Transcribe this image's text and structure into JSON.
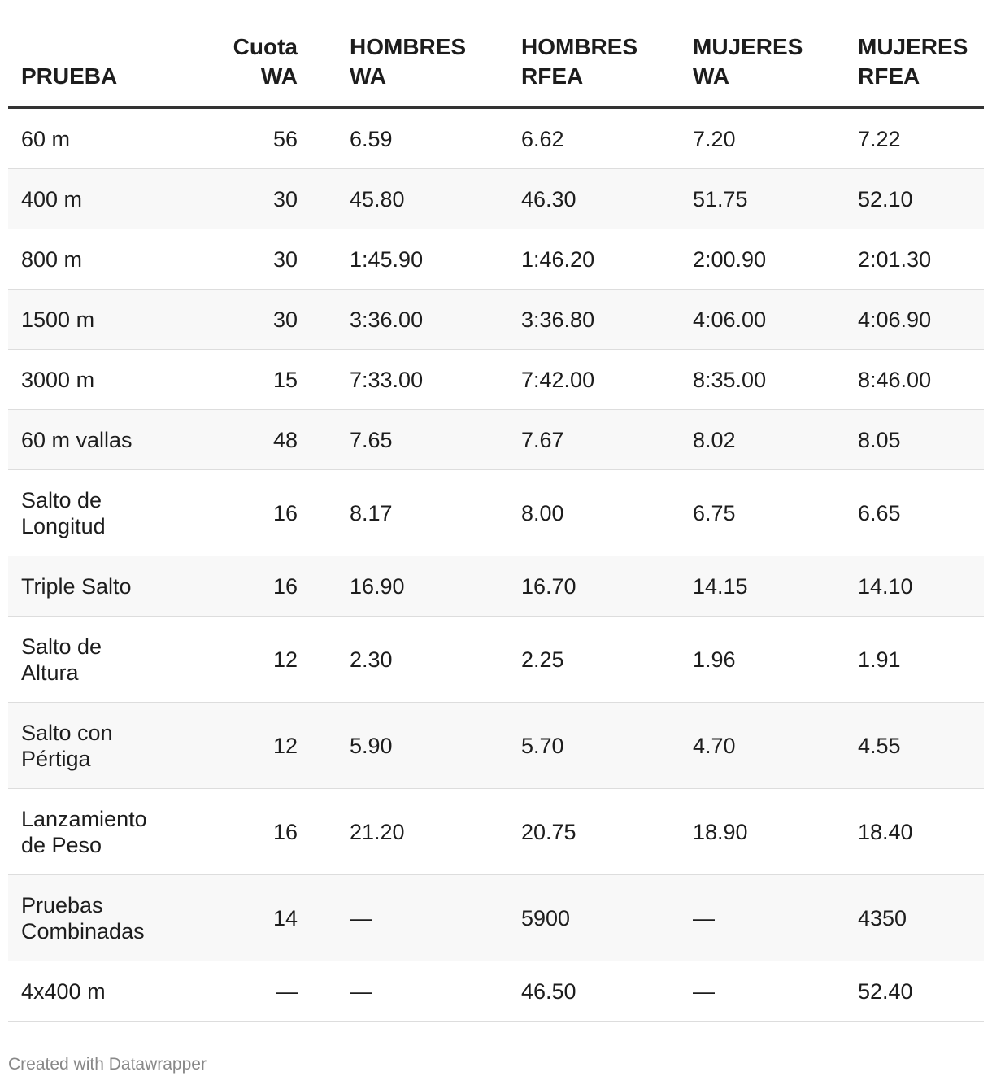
{
  "table": {
    "headers": {
      "prueba": "PRUEBA",
      "cuota_l1": "Cuota",
      "cuota_l2": "WA",
      "hombres_wa_l1": "HOMBRES",
      "hombres_wa_l2": "WA",
      "hombres_rfea_l1": "HOMBRES",
      "hombres_rfea_l2": "RFEA",
      "mujeres_wa_l1": "MUJERES",
      "mujeres_wa_l2": "WA",
      "mujeres_rfea_l1": "MUJERES",
      "mujeres_rfea_l2": "RFEA"
    },
    "rows": [
      {
        "p1": "60 m",
        "p2": "",
        "cuota": "56",
        "hwa": "6.59",
        "hrfea": "6.62",
        "mwa": "7.20",
        "mrfea": "7.22"
      },
      {
        "p1": "400 m",
        "p2": "",
        "cuota": "30",
        "hwa": "45.80",
        "hrfea": "46.30",
        "mwa": "51.75",
        "mrfea": "52.10"
      },
      {
        "p1": "800 m",
        "p2": "",
        "cuota": "30",
        "hwa": "1:45.90",
        "hrfea": "1:46.20",
        "mwa": "2:00.90",
        "mrfea": "2:01.30"
      },
      {
        "p1": "1500 m",
        "p2": "",
        "cuota": "30",
        "hwa": "3:36.00",
        "hrfea": "3:36.80",
        "mwa": "4:06.00",
        "mrfea": "4:06.90"
      },
      {
        "p1": "3000 m",
        "p2": "",
        "cuota": "15",
        "hwa": "7:33.00",
        "hrfea": "7:42.00",
        "mwa": "8:35.00",
        "mrfea": "8:46.00"
      },
      {
        "p1": "60 m vallas",
        "p2": "",
        "cuota": "48",
        "hwa": "7.65",
        "hrfea": "7.67",
        "mwa": "8.02",
        "mrfea": "8.05"
      },
      {
        "p1": "Salto de",
        "p2": "Longitud",
        "cuota": "16",
        "hwa": "8.17",
        "hrfea": "8.00",
        "mwa": "6.75",
        "mrfea": "6.65"
      },
      {
        "p1": "Triple Salto",
        "p2": "",
        "cuota": "16",
        "hwa": "16.90",
        "hrfea": "16.70",
        "mwa": "14.15",
        "mrfea": "14.10"
      },
      {
        "p1": "Salto de",
        "p2": "Altura",
        "cuota": "12",
        "hwa": "2.30",
        "hrfea": "2.25",
        "mwa": "1.96",
        "mrfea": "1.91"
      },
      {
        "p1": "Salto con",
        "p2": "Pértiga",
        "cuota": "12",
        "hwa": "5.90",
        "hrfea": "5.70",
        "mwa": "4.70",
        "mrfea": "4.55"
      },
      {
        "p1": "Lanzamiento",
        "p2": "de Peso",
        "cuota": "16",
        "hwa": "21.20",
        "hrfea": "20.75",
        "mwa": "18.90",
        "mrfea": "18.40"
      },
      {
        "p1": "Pruebas",
        "p2": "Combinadas",
        "cuota": "14",
        "hwa": "—",
        "hrfea": "5900",
        "mwa": "—",
        "mrfea": "4350"
      },
      {
        "p1": "4x400 m",
        "p2": "",
        "cuota": "—",
        "hwa": "—",
        "hrfea": "46.50",
        "mwa": "—",
        "mrfea": "52.40"
      }
    ]
  },
  "footer": {
    "credit": "Created with Datawrapper"
  }
}
